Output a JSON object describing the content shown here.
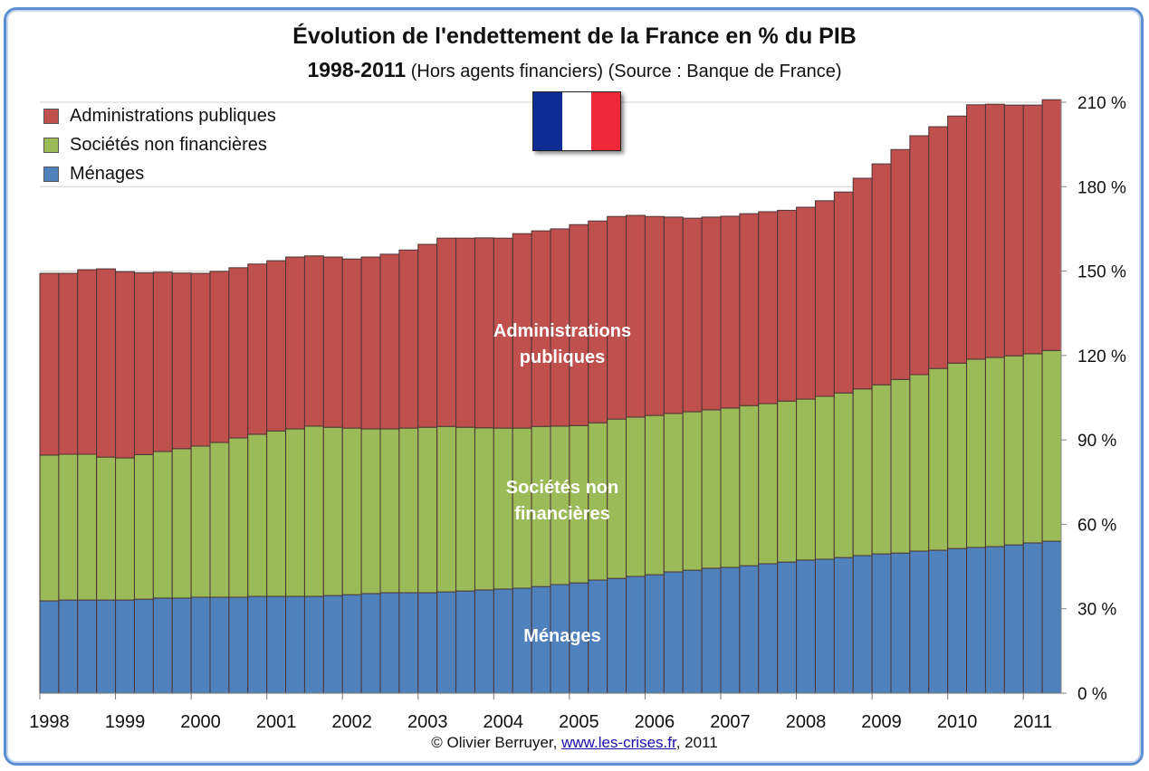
{
  "title": "Évolution de l'endettement de la France en % du PIB",
  "subtitle_years": "1998-2011",
  "subtitle_rest": "(Hors agents financiers) (Source : Banque de France)",
  "footer": {
    "prefix": "© Olivier Berruyer,",
    "link": "www.les-crises.fr",
    "suffix": ", 2011"
  },
  "flag": {
    "colors": [
      "#0d2d94",
      "#ffffff",
      "#ee2839"
    ]
  },
  "chart_data": {
    "type": "bar",
    "stacked": true,
    "title": "Évolution de l'endettement de la France en % du PIB",
    "x_tick_labels": [
      "1998",
      "1999",
      "2000",
      "2001",
      "2002",
      "2003",
      "2004",
      "2005",
      "2006",
      "2007",
      "2008",
      "2009",
      "2010",
      "2011"
    ],
    "periods_per_year": 4,
    "y_ticks": [
      "0 %",
      "30 %",
      "60 %",
      "90 %",
      "120 %",
      "150 %",
      "180 %",
      "210 %"
    ],
    "ylim": [
      0,
      210
    ],
    "y_axis_side": "right",
    "grid": true,
    "legend": "top-left",
    "series": [
      {
        "name": "Ménages",
        "color": "#4f81bd",
        "inner_label": "Ménages",
        "values": [
          32.8,
          33.1,
          33.1,
          33.1,
          33.1,
          33.4,
          33.8,
          33.8,
          34.1,
          34.1,
          34.1,
          34.4,
          34.4,
          34.4,
          34.4,
          34.7,
          35.0,
          35.4,
          35.7,
          35.7,
          35.7,
          36.0,
          36.3,
          36.7,
          37.0,
          37.3,
          37.9,
          38.6,
          39.2,
          40.2,
          40.8,
          41.5,
          42.1,
          43.1,
          43.7,
          44.4,
          44.7,
          45.3,
          46.0,
          46.6,
          47.3,
          47.6,
          48.2,
          48.9,
          49.5,
          49.8,
          50.5,
          50.8,
          51.4,
          51.8,
          52.1,
          52.7,
          53.4,
          54.0
        ]
      },
      {
        "name": "Sociétés non financières",
        "color": "#9bbb59",
        "inner_label": [
          "Sociétés non",
          "financières"
        ],
        "values": [
          51.8,
          51.8,
          51.8,
          50.8,
          50.5,
          51.4,
          52.1,
          53.1,
          53.7,
          55.0,
          56.6,
          57.6,
          58.8,
          59.5,
          60.5,
          59.8,
          59.2,
          58.5,
          58.2,
          58.5,
          58.8,
          58.8,
          58.2,
          57.6,
          57.2,
          56.9,
          56.9,
          56.3,
          55.9,
          55.9,
          56.6,
          56.6,
          56.6,
          56.3,
          56.3,
          56.3,
          56.6,
          56.9,
          56.9,
          57.2,
          57.2,
          57.9,
          58.5,
          59.2,
          60.1,
          61.7,
          62.7,
          64.6,
          65.9,
          66.9,
          67.2,
          67.2,
          67.2,
          67.8
        ]
      },
      {
        "name": "Administrations publiques",
        "color": "#c0504d",
        "inner_label": [
          "Administrations",
          "publiques"
        ],
        "values": [
          64.6,
          64.3,
          65.6,
          66.9,
          66.2,
          64.6,
          63.7,
          62.4,
          61.4,
          60.8,
          60.5,
          60.5,
          60.5,
          61.1,
          60.5,
          60.5,
          60.1,
          61.1,
          62.1,
          63.3,
          65.0,
          66.9,
          67.2,
          67.5,
          67.5,
          69.1,
          69.5,
          70.1,
          71.4,
          71.7,
          72.0,
          71.7,
          70.7,
          69.8,
          68.8,
          68.5,
          68.2,
          68.2,
          68.2,
          67.8,
          68.2,
          69.5,
          71.4,
          74.9,
          78.5,
          81.7,
          84.9,
          85.9,
          87.8,
          90.4,
          90.0,
          89.1,
          88.4,
          89.1
        ]
      }
    ]
  }
}
